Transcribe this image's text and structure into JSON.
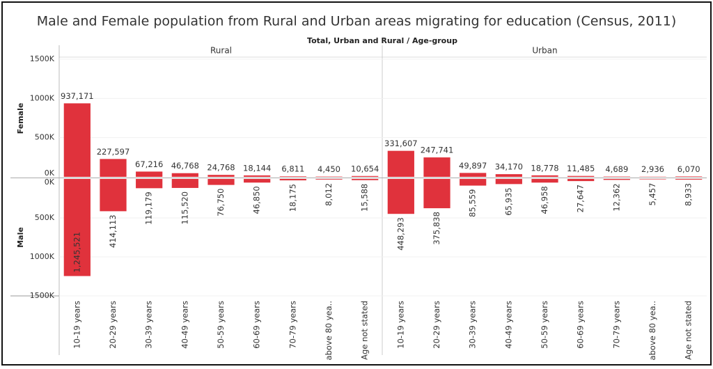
{
  "chart_data": {
    "type": "bar",
    "title": "Male and Female population from Rural and Urban areas migrating for education (Census, 2011)",
    "subtitle": "Total, Urban and Rural  /  Age-group",
    "color": "#e0323c",
    "categories": [
      "10-19 years",
      "20-29 years",
      "30-39 years",
      "40-49 years",
      "50-59 years",
      "60-69 years",
      "70-79 years",
      "above 80 yea..",
      "Age not stated"
    ],
    "ylim": [
      0,
      1500000
    ],
    "yticks": [
      {
        "value": 0,
        "label": "0K"
      },
      {
        "value": 500000,
        "label": "500K"
      },
      {
        "value": 1000000,
        "label": "1000K"
      },
      {
        "value": 1500000,
        "label": "1500K"
      }
    ],
    "grid": true,
    "facets": [
      {
        "name": "Rural",
        "series": [
          {
            "name": "Female",
            "values": [
              937171,
              227597,
              67216,
              46768,
              24768,
              18144,
              6811,
              4450,
              10654
            ],
            "value_labels": [
              "937,171",
              "227,597",
              "67,216",
              "46,768",
              "24,768",
              "18,144",
              "6,811",
              "4,450",
              "10,654"
            ]
          },
          {
            "name": "Male",
            "values": [
              1245521,
              414113,
              119179,
              115520,
              76750,
              46850,
              18175,
              8012,
              15588
            ],
            "value_labels": [
              "1,245,521",
              "414,113",
              "119,179",
              "115,520",
              "76,750",
              "46,850",
              "18,175",
              "8,012",
              "15,588"
            ]
          }
        ]
      },
      {
        "name": "Urban",
        "series": [
          {
            "name": "Female",
            "values": [
              331607,
              247741,
              49897,
              34170,
              18778,
              11485,
              4689,
              2936,
              6070
            ],
            "value_labels": [
              "331,607",
              "247,741",
              "49,897",
              "34,170",
              "18,778",
              "11,485",
              "4,689",
              "2,936",
              "6,070"
            ]
          },
          {
            "name": "Male",
            "values": [
              448293,
              375838,
              85559,
              65935,
              46958,
              27647,
              12362,
              5457,
              8933
            ],
            "value_labels": [
              "448,293",
              "375,838",
              "85,559",
              "65,935",
              "46,958",
              "27,647",
              "12,362",
              "5,457",
              "8,933"
            ]
          }
        ]
      }
    ]
  }
}
